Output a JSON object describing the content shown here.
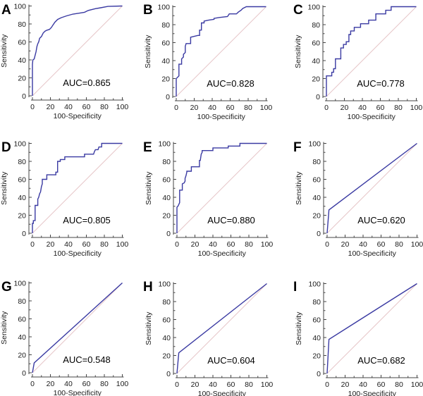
{
  "chart_data": [
    {
      "type": "line",
      "panel": "A",
      "title": "",
      "xlabel": "100-Specificity",
      "ylabel": "Sensitivity",
      "xlim": [
        0,
        100
      ],
      "ylim": [
        0,
        100
      ],
      "xticks": [
        "0",
        "20",
        "40",
        "60",
        "80",
        "100"
      ],
      "yticks": [
        "0",
        "20",
        "40",
        "60",
        "80",
        "100"
      ],
      "annotation": "AUC=0.865",
      "auc": 0.865,
      "series": [
        {
          "name": "ROC",
          "x": [
            0,
            0,
            0.5,
            2,
            3,
            4,
            5,
            6,
            7,
            8,
            10,
            12,
            14,
            16,
            19,
            21,
            23,
            25,
            28,
            32,
            38,
            45,
            52,
            58,
            62,
            70,
            76,
            84,
            100
          ],
          "y": [
            0,
            35,
            40,
            41,
            45,
            49,
            55,
            58,
            60,
            64,
            66,
            70,
            72,
            73,
            74,
            76,
            79,
            82,
            85,
            87,
            89,
            91,
            92,
            93,
            95,
            97,
            98,
            99.5,
            100
          ]
        },
        {
          "name": "Reference",
          "x": [
            0,
            100
          ],
          "y": [
            0,
            100
          ]
        }
      ]
    },
    {
      "type": "line",
      "panel": "B",
      "title": "",
      "xlabel": "100-Specificity",
      "ylabel": "Sensitivity",
      "xlim": [
        0,
        100
      ],
      "ylim": [
        0,
        100
      ],
      "xticks": [
        "0",
        "20",
        "40",
        "60",
        "80",
        "100"
      ],
      "yticks": [
        "0",
        "20",
        "40",
        "60",
        "80",
        "100"
      ],
      "annotation": "AUC=0.828",
      "auc": 0.828,
      "series": [
        {
          "name": "ROC",
          "x": [
            0,
            0,
            1,
            3,
            3,
            3,
            6,
            6,
            8,
            8,
            10,
            10,
            11,
            16,
            16,
            20,
            24,
            26,
            26,
            28,
            28,
            31,
            31,
            36,
            42,
            42,
            48,
            57,
            59,
            67,
            69,
            72,
            74,
            78,
            100
          ],
          "y": [
            0,
            20,
            21,
            23,
            26,
            36,
            36,
            42,
            44,
            47,
            49,
            56,
            59,
            59,
            66,
            67,
            68,
            68,
            74,
            74,
            82,
            82,
            84,
            85,
            86,
            87,
            88,
            89,
            92,
            92,
            94,
            96,
            98,
            100,
            100
          ]
        },
        {
          "name": "Reference",
          "x": [
            0,
            100
          ],
          "y": [
            0,
            100
          ]
        }
      ]
    },
    {
      "type": "line",
      "panel": "C",
      "title": "",
      "xlabel": "100-Specificity",
      "ylabel": "Sensitivity",
      "xlim": [
        0,
        100
      ],
      "ylim": [
        0,
        100
      ],
      "xticks": [
        "0",
        "20",
        "40",
        "60",
        "80",
        "100"
      ],
      "yticks": [
        "0",
        "20",
        "40",
        "60",
        "80",
        "100"
      ],
      "annotation": "AUC=0.778",
      "auc": 0.778,
      "series": [
        {
          "name": "ROC",
          "x": [
            0,
            0,
            6,
            6,
            8,
            8,
            10,
            10,
            16,
            16,
            19,
            19,
            22,
            22,
            25,
            25,
            27,
            27,
            31,
            31,
            38,
            38,
            47,
            47,
            55,
            55,
            66,
            66,
            72,
            72,
            100
          ],
          "y": [
            0,
            23,
            23,
            27,
            27,
            31,
            31,
            42,
            42,
            54,
            54,
            58,
            58,
            61,
            61,
            69,
            69,
            73,
            73,
            77,
            77,
            81,
            81,
            85,
            85,
            92,
            92,
            96,
            96,
            100,
            100
          ]
        },
        {
          "name": "Reference",
          "x": [
            0,
            100
          ],
          "y": [
            0,
            100
          ]
        }
      ]
    },
    {
      "type": "line",
      "panel": "D",
      "title": "",
      "xlabel": "100-Specificity",
      "ylabel": "Sensitivity",
      "xlim": [
        0,
        100
      ],
      "ylim": [
        0,
        100
      ],
      "xticks": [
        "0",
        "20",
        "40",
        "60",
        "80",
        "100"
      ],
      "yticks": [
        "0",
        "20",
        "40",
        "60",
        "80",
        "100"
      ],
      "annotation": "AUC=0.805",
      "auc": 0.805,
      "series": [
        {
          "name": "ROC",
          "x": [
            0,
            0,
            1,
            1,
            3,
            3,
            6,
            6,
            7,
            8,
            9,
            10,
            11,
            11,
            16,
            16,
            26,
            26,
            28,
            28,
            31,
            31,
            36,
            36,
            58,
            58,
            68,
            69,
            70,
            73,
            74,
            77,
            77,
            100
          ],
          "y": [
            0,
            11,
            11,
            14,
            14,
            31,
            31,
            38,
            40,
            44,
            46,
            52,
            55,
            60,
            60,
            65,
            65,
            68,
            68,
            80,
            80,
            82,
            82,
            85,
            85,
            88,
            88,
            91,
            93,
            93,
            96,
            96,
            100,
            100
          ]
        },
        {
          "name": "Reference",
          "x": [
            0,
            100
          ],
          "y": [
            0,
            100
          ]
        }
      ]
    },
    {
      "type": "line",
      "panel": "E",
      "title": "",
      "xlabel": "100-Specificity",
      "ylabel": "Sensitivity",
      "xlim": [
        0,
        100
      ],
      "ylim": [
        0,
        100
      ],
      "xticks": [
        "0",
        "20",
        "40",
        "60",
        "80",
        "100"
      ],
      "yticks": [
        "0",
        "20",
        "40",
        "60",
        "80",
        "100"
      ],
      "annotation": "AUC=0.880",
      "auc": 0.88,
      "series": [
        {
          "name": "ROC",
          "x": [
            0,
            0,
            1,
            2,
            3,
            3,
            3,
            6,
            6,
            8,
            9,
            9,
            10,
            11,
            11,
            16,
            16,
            25,
            25,
            26,
            27,
            28,
            28,
            40,
            40,
            57,
            57,
            70,
            70,
            100
          ],
          "y": [
            0,
            29,
            30,
            32,
            34,
            36,
            48,
            48,
            55,
            56,
            58,
            61,
            64,
            68,
            69,
            69,
            74,
            74,
            81,
            81,
            88,
            90,
            92,
            92,
            95,
            95,
            97,
            97,
            100,
            100
          ]
        },
        {
          "name": "Reference",
          "x": [
            0,
            100
          ],
          "y": [
            0,
            100
          ]
        }
      ]
    },
    {
      "type": "line",
      "panel": "F",
      "title": "",
      "xlabel": "100-Specificity",
      "ylabel": "Sensitivity",
      "xlim": [
        0,
        100
      ],
      "ylim": [
        0,
        100
      ],
      "xticks": [
        "0",
        "20",
        "40",
        "60",
        "80",
        "100"
      ],
      "yticks": [
        "0",
        "20",
        "40",
        "60",
        "80",
        "100"
      ],
      "annotation": "AUC=0.620",
      "auc": 0.62,
      "series": [
        {
          "name": "ROC",
          "x": [
            0,
            2,
            100
          ],
          "y": [
            0,
            26,
            100
          ]
        },
        {
          "name": "Reference",
          "x": [
            0,
            100
          ],
          "y": [
            0,
            100
          ]
        }
      ]
    },
    {
      "type": "line",
      "panel": "G",
      "title": "",
      "xlabel": "100-Specificity",
      "ylabel": "Sensitivity",
      "xlim": [
        0,
        100
      ],
      "ylim": [
        0,
        100
      ],
      "xticks": [
        "0",
        "20",
        "40",
        "60",
        "80",
        "100"
      ],
      "yticks": [
        "0",
        "20",
        "40",
        "60",
        "80",
        "100"
      ],
      "annotation": "AUC=0.548",
      "auc": 0.548,
      "series": [
        {
          "name": "ROC",
          "x": [
            0,
            2,
            100
          ],
          "y": [
            0,
            11,
            100
          ]
        },
        {
          "name": "Reference",
          "x": [
            0,
            100
          ],
          "y": [
            0,
            100
          ]
        }
      ]
    },
    {
      "type": "line",
      "panel": "H",
      "title": "",
      "xlabel": "100-Specificity",
      "ylabel": "Sensitivity",
      "xlim": [
        0,
        100
      ],
      "ylim": [
        0,
        100
      ],
      "xticks": [
        "0",
        "20",
        "40",
        "60",
        "80",
        "100"
      ],
      "yticks": [
        "0",
        "20",
        "40",
        "60",
        "80",
        "100"
      ],
      "annotation": "AUC=0.604",
      "auc": 0.604,
      "series": [
        {
          "name": "ROC",
          "x": [
            0,
            2,
            100
          ],
          "y": [
            0,
            23,
            100
          ]
        },
        {
          "name": "Reference",
          "x": [
            0,
            100
          ],
          "y": [
            0,
            100
          ]
        }
      ]
    },
    {
      "type": "line",
      "panel": "I",
      "title": "",
      "xlabel": "100-Specificity",
      "ylabel": "Sensitivity",
      "xlim": [
        0,
        100
      ],
      "ylim": [
        0,
        100
      ],
      "xticks": [
        "0",
        "20",
        "40",
        "60",
        "80",
        "100"
      ],
      "yticks": [
        "0",
        "20",
        "40",
        "60",
        "80",
        "100"
      ],
      "annotation": "AUC=0.682",
      "auc": 0.682,
      "series": [
        {
          "name": "ROC",
          "x": [
            0,
            2,
            100
          ],
          "y": [
            0,
            38,
            100
          ]
        },
        {
          "name": "Reference",
          "x": [
            0,
            100
          ],
          "y": [
            0,
            100
          ]
        }
      ]
    }
  ],
  "colors": {
    "roc_curve": "#3a3aa2",
    "reference_line": "#e6c6c8",
    "axis": "#444444"
  }
}
